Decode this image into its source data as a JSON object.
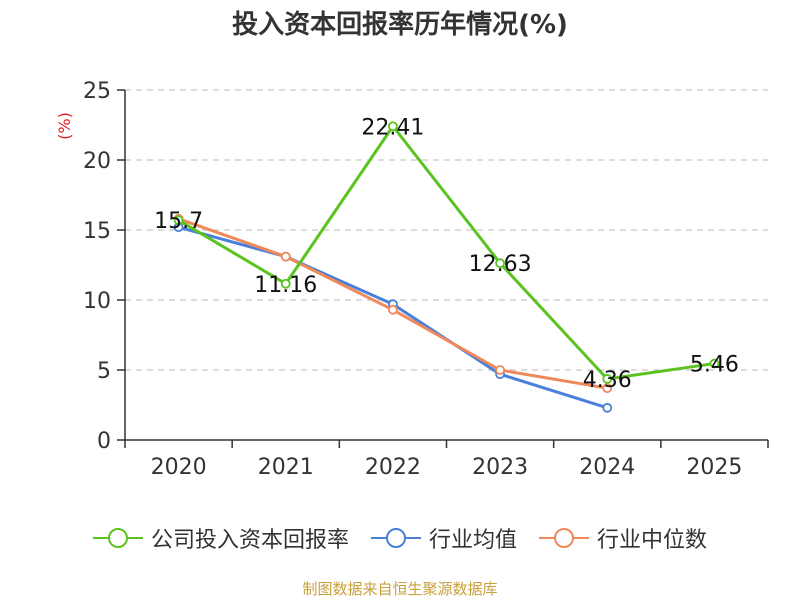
{
  "colors": {
    "company": "#5bc31f",
    "avg": "#4a7fdc",
    "median": "#f0895a",
    "axis": "#333333",
    "grid": "#c8c8c8",
    "unit": "#dd2020",
    "source": "#c8a03c"
  },
  "chart_data": {
    "type": "line",
    "title": "投入资本回报率历年情况(%)",
    "ylabel": "(%)",
    "categories": [
      "2020",
      "2021",
      "2022",
      "2023",
      "2024",
      "2025"
    ],
    "ylim": [
      0,
      25
    ],
    "yticks": [
      0,
      5,
      10,
      15,
      20,
      25
    ],
    "grid": true,
    "legend_position": "bottom",
    "series": [
      {
        "key": "company",
        "name": "公司投入资本回报率",
        "values": [
          15.7,
          11.16,
          22.41,
          12.63,
          4.36,
          5.46
        ],
        "labels": [
          "15.7",
          "11.16",
          "22.41",
          "12.63",
          "4.36",
          "5.46"
        ]
      },
      {
        "key": "avg",
        "name": "行业均值",
        "values": [
          15.2,
          13.1,
          9.7,
          4.7,
          2.3,
          null
        ]
      },
      {
        "key": "median",
        "name": "行业中位数",
        "values": [
          15.8,
          13.1,
          9.3,
          5.0,
          3.7,
          null
        ]
      }
    ],
    "source": "制图数据来自恒生聚源数据库"
  }
}
